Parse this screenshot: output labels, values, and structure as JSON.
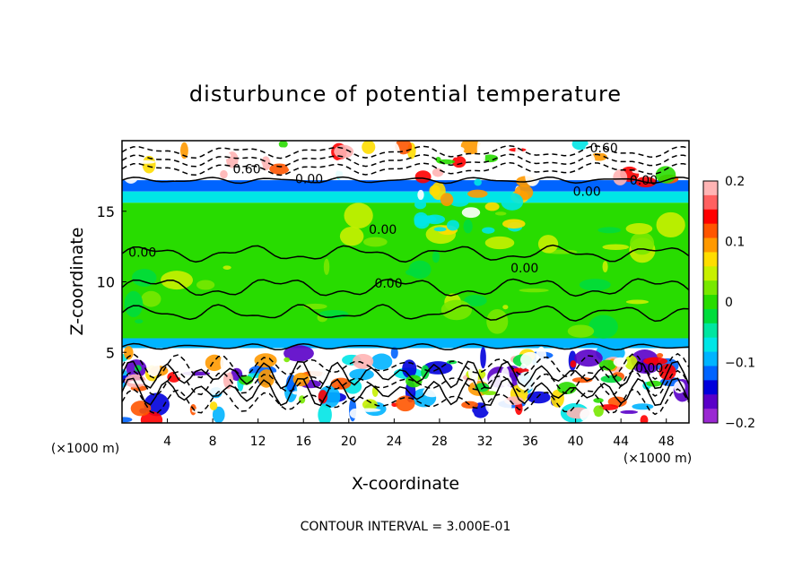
{
  "chart_data": {
    "type": "heatmap",
    "title": "disturbunce of potential temperature",
    "xlabel": "X-coordinate",
    "ylabel": "Z-coordinate",
    "x_unit_left": "(×1000 m)",
    "x_unit_right": "(×1000 m)",
    "x_ticks": [
      4,
      8,
      12,
      16,
      20,
      24,
      28,
      32,
      36,
      40,
      44,
      48
    ],
    "y_ticks": [
      5,
      10,
      15
    ],
    "xlim": [
      0,
      50
    ],
    "ylim": [
      0,
      20
    ],
    "footer": "CONTOUR INTERVAL = 3.000E-01",
    "contour_labels": [
      {
        "text": "0.60",
        "x": 42.5,
        "y": 19.5
      },
      {
        "text": "0.60",
        "x": 11.0,
        "y": 18.0
      },
      {
        "text": "0.00",
        "x": 16.5,
        "y": 17.3
      },
      {
        "text": "0.00",
        "x": 46.0,
        "y": 17.2
      },
      {
        "text": "0.00",
        "x": 41.0,
        "y": 16.4
      },
      {
        "text": "0.00",
        "x": 23.0,
        "y": 13.7
      },
      {
        "text": "0.00",
        "x": 1.8,
        "y": 12.1
      },
      {
        "text": "0.00",
        "x": 35.5,
        "y": 11.0
      },
      {
        "text": "0.00",
        "x": 23.5,
        "y": 9.9
      },
      {
        "text": "0.00",
        "x": 46.5,
        "y": 3.9
      }
    ],
    "colorbar": {
      "min": -0.2,
      "max": 0.2,
      "tick_labels": [
        "0.2",
        "0.1",
        "0",
        "−0.1",
        "−0.2"
      ],
      "tick_values": [
        0.2,
        0.1,
        0,
        -0.1,
        -0.2
      ],
      "colors": [
        "#ffb4b4",
        "#ff6060",
        "#ff0000",
        "#ff5500",
        "#ff9900",
        "#ffdd00",
        "#c8f000",
        "#78e800",
        "#28dc00",
        "#00dc3c",
        "#00e6a0",
        "#00e6e6",
        "#00b4ff",
        "#0064ff",
        "#0000dc",
        "#5a00c8",
        "#9a28d2"
      ]
    },
    "bands": [
      {
        "z0": 17.2,
        "z1": 20.0,
        "color": "#ffffff"
      },
      {
        "z0": 16.4,
        "z1": 17.2,
        "color": "#0064ff"
      },
      {
        "z0": 15.6,
        "z1": 16.4,
        "color": "#00e6e6"
      },
      {
        "z0": 6.0,
        "z1": 15.6,
        "color": "#28dc00"
      },
      {
        "z0": 5.3,
        "z1": 6.0,
        "color": "#00b4ff"
      },
      {
        "z0": 0.0,
        "z1": 5.3,
        "color": "#ffffff"
      }
    ]
  }
}
